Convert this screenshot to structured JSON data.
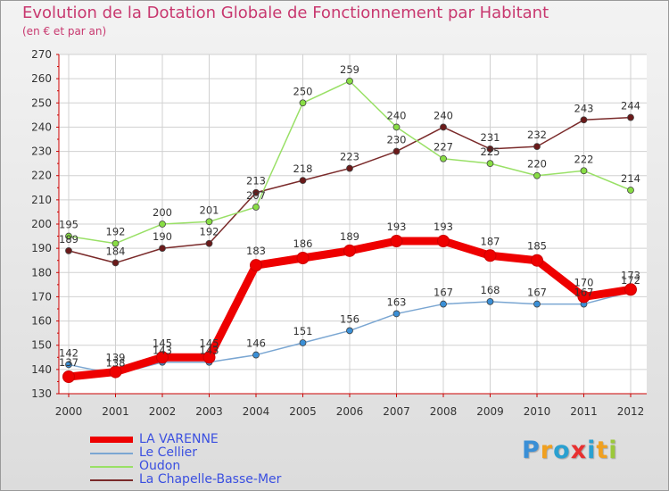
{
  "header": {
    "title": "Evolution de la Dotation Globale de Fonctionnement par Habitant",
    "subtitle": "(en € et par an)"
  },
  "colors": {
    "title": "#c8386f",
    "legend_text": "#3a4fe0",
    "axis": "#cc0000",
    "grid": "#d0d0d0"
  },
  "brand": {
    "text": "Proxiti",
    "letter_colors": [
      "#3a8fd6",
      "#f0a020",
      "#2aa0d0",
      "#e83030",
      "#2aa0d0",
      "#f0a020",
      "#9bc83a"
    ]
  },
  "chart_data": {
    "type": "line",
    "title": "Evolution de la Dotation Globale de Fonctionnement par Habitant",
    "subtitle": "(en € et par an)",
    "xlabel": "",
    "ylabel": "",
    "ylim": [
      130,
      270
    ],
    "yticks": [
      130,
      140,
      150,
      160,
      170,
      180,
      190,
      200,
      210,
      220,
      230,
      240,
      250,
      260,
      270
    ],
    "categories": [
      "2000",
      "2001",
      "2002",
      "2003",
      "2004",
      "2005",
      "2006",
      "2007",
      "2008",
      "2009",
      "2010",
      "2011",
      "2012"
    ],
    "grid": true,
    "legend_position": "bottom-left",
    "series": [
      {
        "name": "LA VARENNE",
        "color": "#ee0000",
        "marker_fill": "#ee0000",
        "values": [
          137,
          139,
          145,
          145,
          183,
          186,
          189,
          193,
          193,
          187,
          185,
          170,
          173
        ],
        "labels": [
          "137",
          "139",
          "145",
          "145",
          "183",
          "186",
          "189",
          "193",
          "193",
          "187",
          "185",
          "170",
          "173"
        ]
      },
      {
        "name": "Le Cellier",
        "color": "#7aa6d2",
        "marker_fill": "#3a8fd6",
        "values": [
          142,
          138,
          143,
          143,
          146,
          151,
          156,
          163,
          167,
          168,
          167,
          167,
          172
        ],
        "labels": [
          "142",
          "138",
          "143",
          "143",
          "146",
          "151",
          "156",
          "163",
          "167",
          "168",
          "167",
          "167",
          "172"
        ]
      },
      {
        "name": "Oudon",
        "color": "#99e066",
        "marker_fill": "#88dd44",
        "values": [
          195,
          192,
          200,
          201,
          207,
          250,
          259,
          240,
          227,
          225,
          220,
          222,
          214
        ],
        "labels": [
          "195",
          "192",
          "200",
          "201",
          "207",
          "250",
          "259",
          "240",
          "227",
          "225",
          "220",
          "222",
          "214"
        ]
      },
      {
        "name": "La Chapelle-Basse-Mer",
        "color": "#7a2a2a",
        "marker_fill": "#6b1a1a",
        "values": [
          189,
          184,
          190,
          192,
          213,
          218,
          223,
          230,
          240,
          231,
          232,
          243,
          244
        ],
        "labels": [
          "189",
          "184",
          "190",
          "192",
          "213",
          "218",
          "223",
          "230",
          "240",
          "231",
          "232",
          "243",
          "244"
        ]
      }
    ]
  }
}
